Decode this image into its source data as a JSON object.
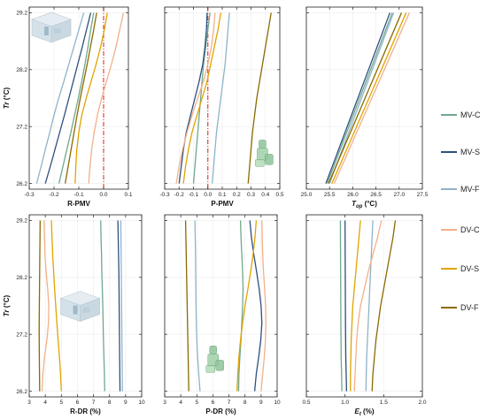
{
  "colors": {
    "MV-C": "#6fa88c",
    "MV-S": "#2f4f7f",
    "MV-F": "#8fb3c9",
    "DV-C": "#f2b08a",
    "DV-S": "#e0a400",
    "DV-F": "#8a6a00"
  },
  "legend": {
    "position": "right",
    "entries": [
      "MV-C",
      "MV-S",
      "MV-F",
      "DV-C",
      "DV-S",
      "DV-F"
    ]
  },
  "chart_data": [
    {
      "type": "line",
      "xlabel": "R-PMV",
      "ylabel": "Tr (°C)",
      "xlim": [
        -0.3,
        0.1
      ],
      "xticks": [
        -0.3,
        -0.2,
        -0.1,
        0.0,
        0.1
      ],
      "xtick_labels": [
        "-0.3",
        "-0.2",
        "-0.1",
        "0.0",
        "0.1"
      ],
      "ylim": [
        26.1,
        29.3
      ],
      "yticks": [
        26.2,
        27.2,
        28.2,
        29.2
      ],
      "ytick_labels": [
        "26.2",
        "27.2",
        "28.2",
        "29.2"
      ],
      "grid": true,
      "ref_line": 0.0,
      "thumbnail": "room-model",
      "thumb_pos": "top-left",
      "y": [
        26.2,
        26.5,
        26.8,
        27.1,
        27.4,
        27.7,
        28.0,
        28.3,
        28.6,
        28.9,
        29.2
      ],
      "series": [
        {
          "name": "MV-C",
          "x": [
            -0.18,
            -0.164,
            -0.148,
            -0.132,
            -0.117,
            -0.102,
            -0.088,
            -0.075,
            -0.063,
            -0.052,
            -0.04
          ]
        },
        {
          "name": "MV-S",
          "x": [
            -0.235,
            -0.215,
            -0.196,
            -0.177,
            -0.158,
            -0.14,
            -0.122,
            -0.104,
            -0.086,
            -0.069,
            -0.052
          ]
        },
        {
          "name": "MV-F",
          "x": [
            -0.27,
            -0.252,
            -0.235,
            -0.217,
            -0.2,
            -0.181,
            -0.16,
            -0.14,
            -0.12,
            -0.1,
            -0.08
          ]
        },
        {
          "name": "DV-C",
          "x": [
            -0.06,
            -0.055,
            -0.048,
            -0.038,
            -0.025,
            -0.008,
            0.012,
            0.032,
            0.05,
            0.065,
            0.08
          ]
        },
        {
          "name": "DV-S",
          "x": [
            -0.115,
            -0.112,
            -0.108,
            -0.1,
            -0.088,
            -0.07,
            -0.05,
            -0.03,
            -0.012,
            0.003,
            0.015
          ]
        },
        {
          "name": "DV-F",
          "x": [
            -0.155,
            -0.143,
            -0.131,
            -0.119,
            -0.107,
            -0.094,
            -0.08,
            -0.066,
            -0.053,
            -0.04,
            -0.028
          ]
        }
      ]
    },
    {
      "type": "line",
      "xlabel": "P-PMV",
      "ylabel": "",
      "xlim": [
        -0.3,
        0.5
      ],
      "xticks": [
        -0.3,
        -0.2,
        -0.1,
        0.0,
        0.1,
        0.2,
        0.3,
        0.4,
        0.5
      ],
      "xtick_labels": [
        "-0.3",
        "-0.2",
        "-0.1",
        "0.0",
        "0.1",
        "0.2",
        "0.3",
        "0.4",
        "0.5"
      ],
      "ylim": [
        26.1,
        29.3
      ],
      "yticks": [
        26.2,
        27.2,
        28.2,
        29.2
      ],
      "ytick_labels": [
        "",
        "",
        "",
        ""
      ],
      "grid": true,
      "ref_line": 0.0,
      "thumbnail": "occupant",
      "thumb_pos": "bottom-right",
      "y": [
        26.2,
        26.5,
        26.8,
        27.1,
        27.4,
        27.7,
        28.0,
        28.3,
        28.6,
        28.9,
        29.2
      ],
      "series": [
        {
          "name": "MV-C",
          "x": [
            -0.1,
            -0.09,
            -0.08,
            -0.07,
            -0.06,
            -0.05,
            -0.04,
            -0.03,
            -0.015,
            0.0,
            0.015
          ]
        },
        {
          "name": "MV-S",
          "x": [
            -0.2,
            -0.185,
            -0.17,
            -0.15,
            -0.12,
            -0.09,
            -0.06,
            -0.035,
            -0.02,
            -0.01,
            -0.005
          ]
        },
        {
          "name": "MV-F",
          "x": [
            0.03,
            0.04,
            0.05,
            0.06,
            0.075,
            0.09,
            0.105,
            0.12,
            0.13,
            0.14,
            0.15
          ]
        },
        {
          "name": "DV-C",
          "x": [
            -0.22,
            -0.2,
            -0.175,
            -0.145,
            -0.11,
            -0.07,
            -0.03,
            0.0,
            0.025,
            0.04,
            0.05
          ]
        },
        {
          "name": "DV-S",
          "x": [
            -0.17,
            -0.155,
            -0.135,
            -0.11,
            -0.075,
            -0.04,
            -0.005,
            0.02,
            0.045,
            0.07,
            0.09
          ]
        },
        {
          "name": "DV-F",
          "x": [
            0.28,
            0.29,
            0.3,
            0.31,
            0.325,
            0.34,
            0.36,
            0.38,
            0.4,
            0.42,
            0.44
          ]
        }
      ]
    },
    {
      "type": "line",
      "xlabel": "Top (°C)",
      "ylabel": "",
      "xlim": [
        25.0,
        27.5
      ],
      "xticks": [
        25.0,
        25.5,
        26.0,
        26.5,
        27.0,
        27.5
      ],
      "xtick_labels": [
        "25.0",
        "25.5",
        "26.0",
        "26.5",
        "27.0",
        "27.5"
      ],
      "ylim": [
        26.1,
        29.3
      ],
      "yticks": [
        26.2,
        27.2,
        28.2,
        29.2
      ],
      "ytick_labels": [
        "",
        "",
        "",
        ""
      ],
      "grid": true,
      "y": [
        26.2,
        29.2
      ],
      "series": [
        {
          "name": "MV-C",
          "x": [
            25.45,
            26.85
          ]
        },
        {
          "name": "MV-S",
          "x": [
            25.42,
            26.8
          ]
        },
        {
          "name": "MV-F",
          "x": [
            25.5,
            26.88
          ]
        },
        {
          "name": "DV-C",
          "x": [
            25.6,
            27.22
          ]
        },
        {
          "name": "DV-S",
          "x": [
            25.55,
            27.15
          ]
        },
        {
          "name": "DV-F",
          "x": [
            25.48,
            27.05
          ]
        }
      ]
    },
    {
      "type": "line",
      "xlabel": "R-DR (%)",
      "ylabel": "Tr (°C)",
      "xlim": [
        3,
        10
      ],
      "xticks": [
        3,
        4,
        5,
        6,
        7,
        8,
        9,
        10
      ],
      "xtick_labels": [
        "3",
        "4",
        "5",
        "6",
        "7",
        "8",
        "9",
        "10"
      ],
      "ylim": [
        26.1,
        29.3
      ],
      "yticks": [
        26.2,
        27.2,
        28.2,
        29.2
      ],
      "ytick_labels": [
        "26.2",
        "27.2",
        "28.2",
        "29.2"
      ],
      "grid": true,
      "thumbnail": "room-model",
      "thumb_pos": "middle",
      "y": [
        26.2,
        26.5,
        26.8,
        27.1,
        27.4,
        27.7,
        28.0,
        28.3,
        28.6,
        28.9,
        29.2
      ],
      "series": [
        {
          "name": "MV-C",
          "x": [
            7.7,
            7.68,
            7.65,
            7.62,
            7.6,
            7.58,
            7.55,
            7.52,
            7.5,
            7.47,
            7.45
          ]
        },
        {
          "name": "MV-S",
          "x": [
            8.65,
            8.64,
            8.63,
            8.62,
            8.61,
            8.6,
            8.59,
            8.58,
            8.56,
            8.54,
            8.52
          ]
        },
        {
          "name": "MV-F",
          "x": [
            8.8,
            8.79,
            8.78,
            8.77,
            8.76,
            8.75,
            8.74,
            8.73,
            8.72,
            8.71,
            8.7
          ]
        },
        {
          "name": "DV-C",
          "x": [
            3.8,
            3.85,
            3.95,
            4.1,
            4.2,
            4.22,
            4.15,
            4.05,
            3.98,
            3.95,
            3.92
          ]
        },
        {
          "name": "DV-S",
          "x": [
            5.0,
            4.95,
            4.88,
            4.8,
            4.72,
            4.65,
            4.58,
            4.52,
            4.46,
            4.42,
            4.38
          ]
        },
        {
          "name": "DV-F",
          "x": [
            3.65,
            3.64,
            3.63,
            3.62,
            3.62,
            3.63,
            3.64,
            3.65,
            3.66,
            3.67,
            3.68
          ]
        }
      ]
    },
    {
      "type": "line",
      "xlabel": "P-DR (%)",
      "ylabel": "",
      "xlim": [
        3,
        10
      ],
      "xticks": [
        3,
        4,
        5,
        6,
        7,
        8,
        9,
        10
      ],
      "xtick_labels": [
        "3",
        "4",
        "5",
        "6",
        "7",
        "8",
        "9",
        "10"
      ],
      "ylim": [
        26.1,
        29.3
      ],
      "yticks": [
        26.2,
        27.2,
        28.2,
        29.2
      ],
      "ytick_labels": [
        "",
        "",
        "",
        ""
      ],
      "grid": true,
      "thumbnail": "occupant",
      "thumb_pos": "bottom-center",
      "y": [
        26.2,
        26.5,
        26.8,
        27.1,
        27.4,
        27.7,
        28.0,
        28.3,
        28.6,
        28.9,
        29.2
      ],
      "series": [
        {
          "name": "MV-C",
          "x": [
            7.6,
            7.62,
            7.68,
            7.75,
            7.8,
            7.85,
            7.88,
            7.85,
            7.8,
            7.75,
            7.72
          ]
        },
        {
          "name": "MV-S",
          "x": [
            8.6,
            8.7,
            8.85,
            8.98,
            9.05,
            9.0,
            8.88,
            8.72,
            8.55,
            8.4,
            8.3
          ]
        },
        {
          "name": "MV-F",
          "x": [
            5.2,
            5.12,
            5.05,
            5.0,
            4.97,
            4.95,
            4.94,
            4.93,
            4.92,
            4.9,
            4.88
          ]
        },
        {
          "name": "DV-C",
          "x": [
            9.0,
            9.1,
            9.2,
            9.27,
            9.3,
            9.28,
            9.22,
            9.15,
            9.1,
            9.07,
            9.05
          ]
        },
        {
          "name": "DV-S",
          "x": [
            7.5,
            7.55,
            7.62,
            7.72,
            7.85,
            8.0,
            8.18,
            8.35,
            8.5,
            8.62,
            8.7
          ]
        },
        {
          "name": "DV-F",
          "x": [
            4.5,
            4.48,
            4.46,
            4.44,
            4.42,
            4.4,
            4.38,
            4.36,
            4.34,
            4.32,
            4.3
          ]
        }
      ]
    },
    {
      "type": "line",
      "xlabel": "Et (%)",
      "ylabel": "",
      "xlim": [
        0.5,
        2.0
      ],
      "xticks": [
        0.5,
        1.0,
        1.5,
        2.0
      ],
      "xtick_labels": [
        "0.5",
        "1.0",
        "1.5",
        "2.0"
      ],
      "ylim": [
        26.1,
        29.3
      ],
      "yticks": [
        26.2,
        27.2,
        28.2,
        29.2
      ],
      "ytick_labels": [
        "",
        "",
        "",
        ""
      ],
      "grid": true,
      "y": [
        26.2,
        26.5,
        26.8,
        27.1,
        27.4,
        27.7,
        28.0,
        28.3,
        28.6,
        28.9,
        29.2
      ],
      "series": [
        {
          "name": "MV-C",
          "x": [
            0.96,
            0.955,
            0.95,
            0.948,
            0.946,
            0.945,
            0.944,
            0.943,
            0.942,
            0.941,
            0.94
          ]
        },
        {
          "name": "MV-S",
          "x": [
            1.02,
            1.015,
            1.01,
            1.008,
            1.006,
            1.005,
            1.004,
            1.003,
            1.002,
            1.001,
            1.0
          ]
        },
        {
          "name": "MV-F",
          "x": [
            1.27,
            1.275,
            1.28,
            1.29,
            1.3,
            1.31,
            1.32,
            1.33,
            1.34,
            1.35,
            1.36
          ]
        },
        {
          "name": "DV-C",
          "x": [
            1.12,
            1.13,
            1.14,
            1.15,
            1.17,
            1.2,
            1.25,
            1.3,
            1.36,
            1.42,
            1.47
          ]
        },
        {
          "name": "DV-S",
          "x": [
            1.07,
            1.07,
            1.075,
            1.08,
            1.09,
            1.1,
            1.12,
            1.14,
            1.16,
            1.18,
            1.2
          ]
        },
        {
          "name": "DV-F",
          "x": [
            1.35,
            1.36,
            1.38,
            1.4,
            1.43,
            1.46,
            1.5,
            1.54,
            1.58,
            1.62,
            1.65
          ]
        }
      ]
    }
  ]
}
